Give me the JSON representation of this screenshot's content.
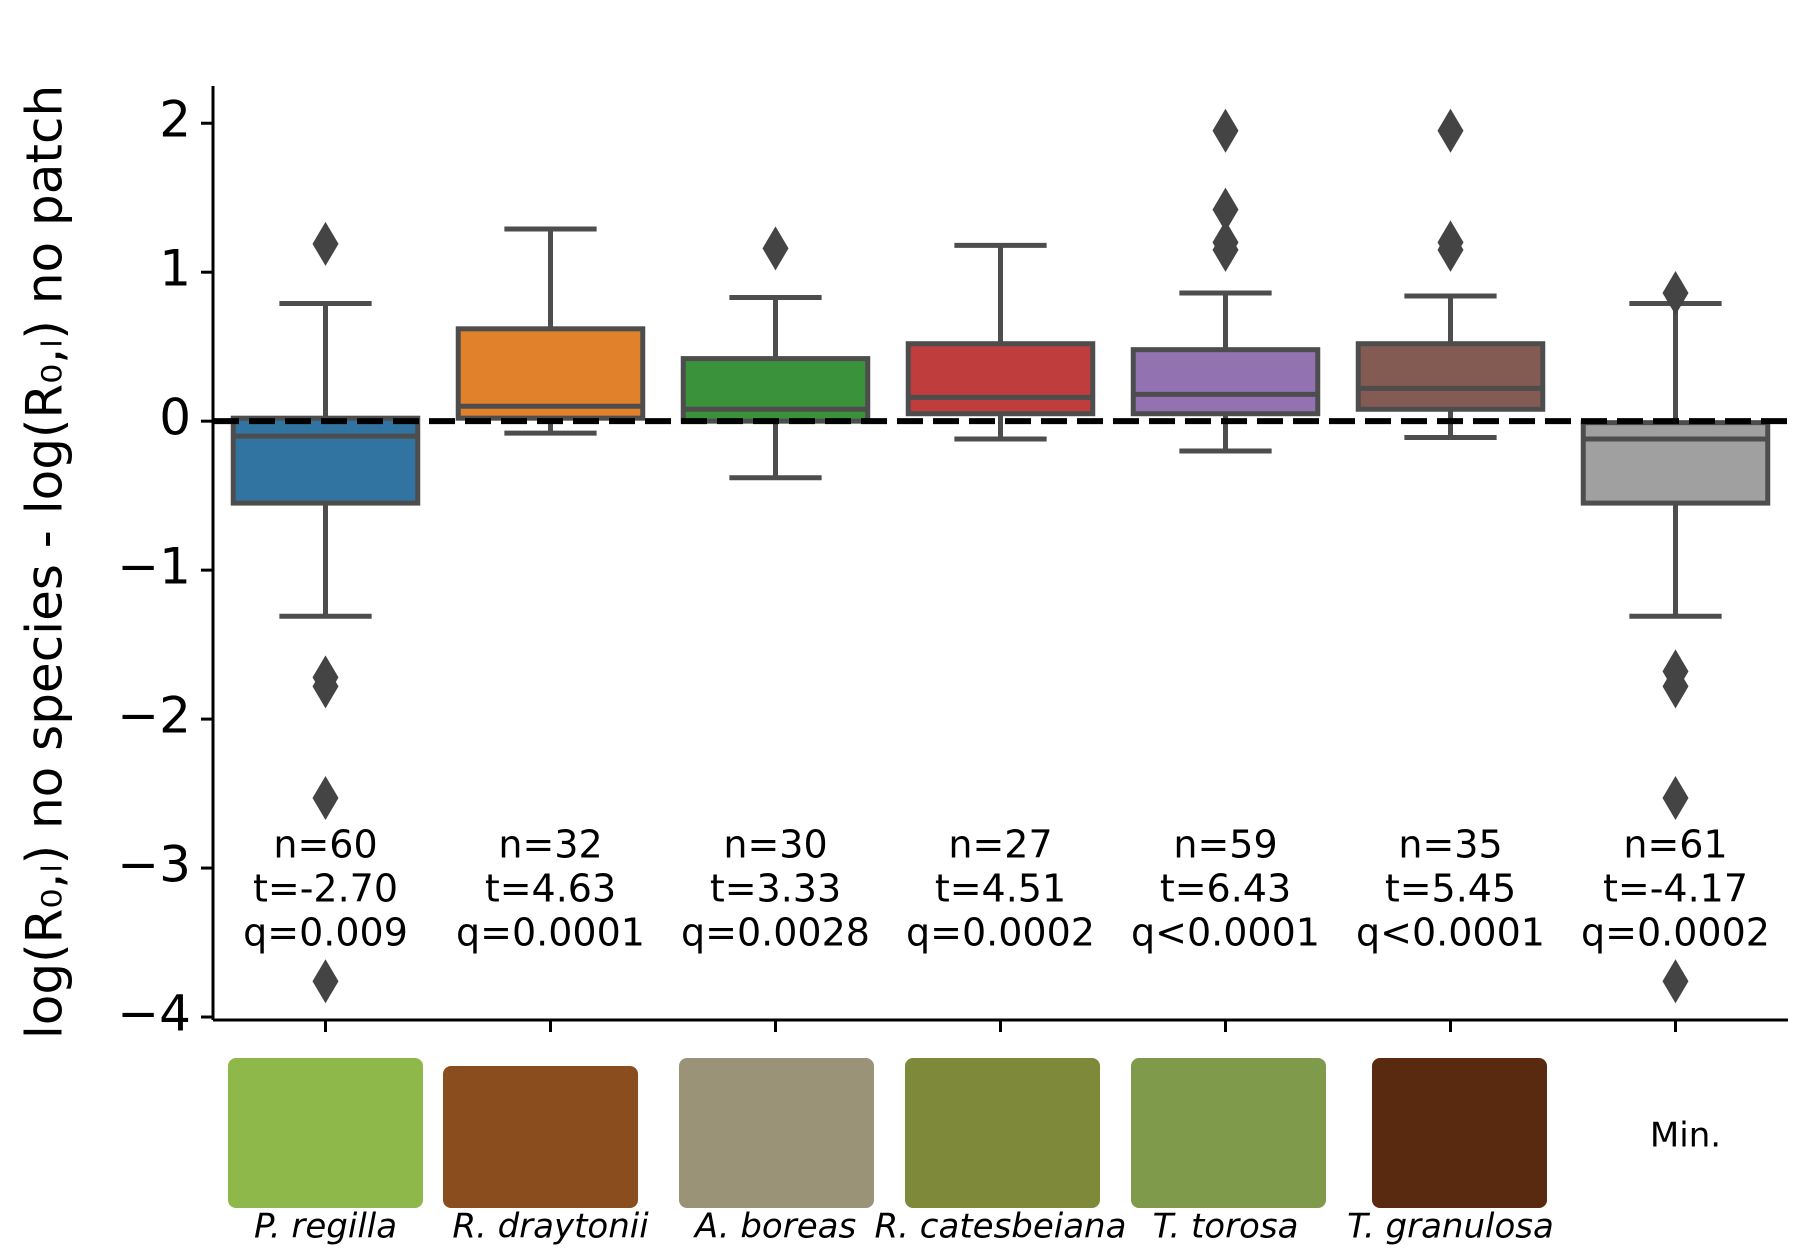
{
  "chart_data": {
    "type": "box",
    "ylabel": "log(R₀,ₗ) no species - log(R₀,ₗ) no patch",
    "categories": [
      "P. regilla",
      "R. draytonii",
      "A. boreas",
      "R. catesbeiana",
      "T. torosa",
      "T. granulosa",
      "Min."
    ],
    "colors": [
      "#3274a1",
      "#e1812c",
      "#3a923a",
      "#c03d3e",
      "#9372b2",
      "#845b53",
      "#a0a0a0"
    ],
    "boxes": [
      {
        "whislo": -1.31,
        "q1": -0.55,
        "med": -0.1,
        "q3": 0.02,
        "whishi": 0.79,
        "fliers": [
          1.19,
          -1.72,
          -1.78,
          -2.53,
          -3.76
        ]
      },
      {
        "whislo": -0.08,
        "q1": 0.02,
        "med": 0.1,
        "q3": 0.62,
        "whishi": 1.29,
        "fliers": []
      },
      {
        "whislo": -0.38,
        "q1": 0.0,
        "med": 0.08,
        "q3": 0.42,
        "whishi": 0.83,
        "fliers": [
          1.16
        ]
      },
      {
        "whislo": -0.12,
        "q1": 0.05,
        "med": 0.16,
        "q3": 0.52,
        "whishi": 1.18,
        "fliers": []
      },
      {
        "whislo": -0.2,
        "q1": 0.05,
        "med": 0.18,
        "q3": 0.48,
        "whishi": 0.86,
        "fliers": [
          1.95,
          1.42,
          1.2,
          1.15
        ]
      },
      {
        "whislo": -0.11,
        "q1": 0.08,
        "med": 0.22,
        "q3": 0.52,
        "whishi": 0.84,
        "fliers": [
          1.95,
          1.2,
          1.15
        ]
      },
      {
        "whislo": -1.31,
        "q1": -0.55,
        "med": -0.12,
        "q3": -0.01,
        "whishi": 0.79,
        "fliers": [
          0.86,
          -1.68,
          -1.78,
          -2.53,
          -3.76
        ]
      }
    ],
    "annotations": [
      [
        "n=60",
        "t=-2.70",
        "q=0.009"
      ],
      [
        "n=32",
        "t=4.63",
        "q=0.0001"
      ],
      [
        "n=30",
        "t=3.33",
        "q=0.0028"
      ],
      [
        "n=27",
        "t=4.51",
        "q=0.0002"
      ],
      [
        "n=59",
        "t=6.43",
        "q<0.0001"
      ],
      [
        "n=35",
        "t=5.45",
        "q<0.0001"
      ],
      [
        "n=61",
        "t=-4.17",
        "q=0.0002"
      ]
    ],
    "reference_line": 0,
    "ylim": [
      -4.02,
      2.25
    ],
    "yticks": [
      {
        "value": -4,
        "label": "−4"
      },
      {
        "value": -3,
        "label": "−3"
      },
      {
        "value": -2,
        "label": "−2"
      },
      {
        "value": -1,
        "label": "−1"
      },
      0,
      1,
      2
    ]
  }
}
